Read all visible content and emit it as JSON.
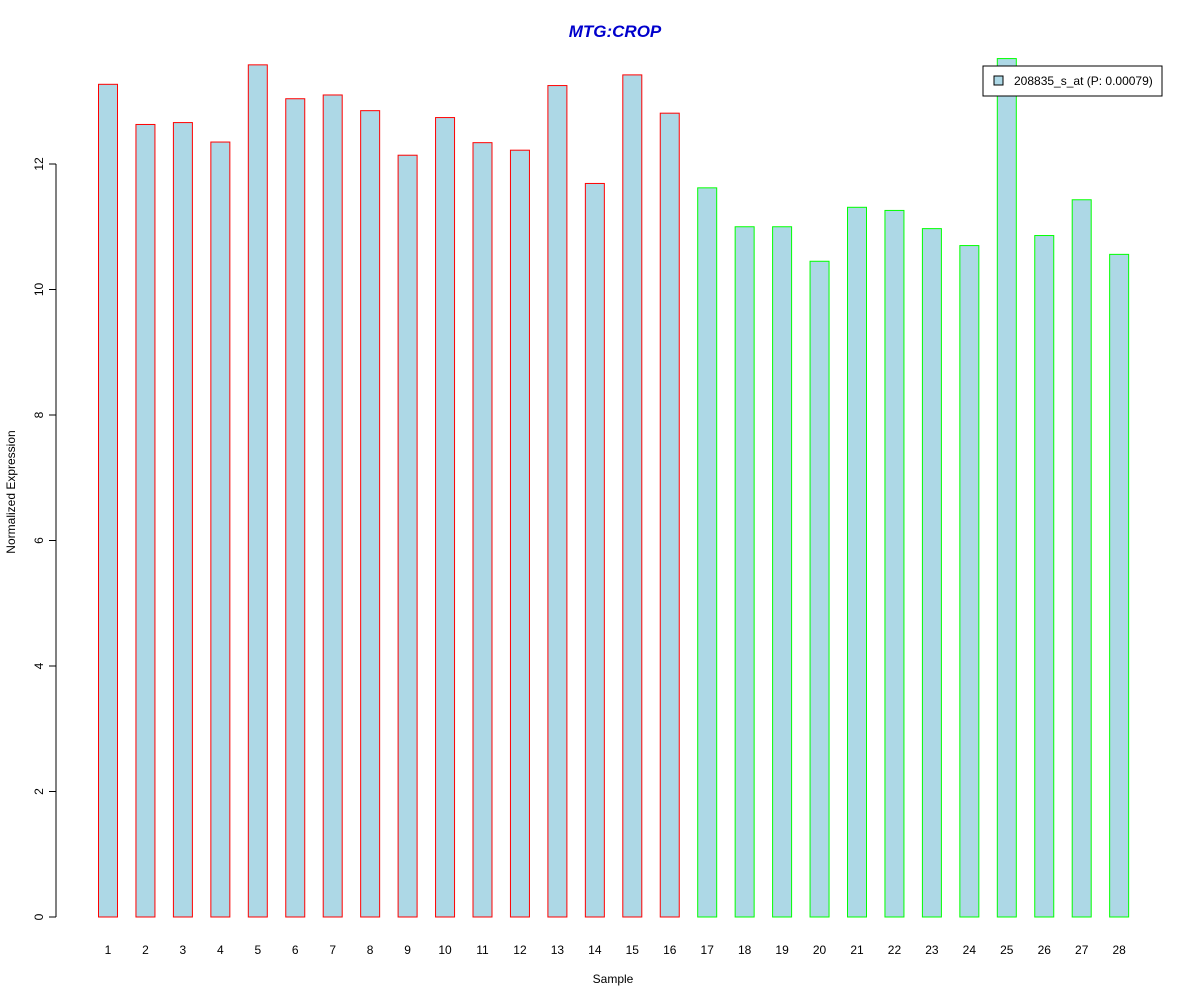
{
  "chart_data": {
    "type": "bar",
    "title": "MTG:CROP",
    "xlabel": "Sample",
    "ylabel": "Normalized Expression",
    "ylim": [
      0,
      13.6
    ],
    "y_ticks": [
      0,
      2,
      4,
      6,
      8,
      10,
      12
    ],
    "categories": [
      "1",
      "2",
      "3",
      "4",
      "5",
      "6",
      "7",
      "8",
      "9",
      "10",
      "11",
      "12",
      "13",
      "14",
      "15",
      "16",
      "17",
      "18",
      "19",
      "20",
      "21",
      "22",
      "23",
      "24",
      "25",
      "26",
      "27",
      "28"
    ],
    "series": [
      {
        "name": "208835_s_at (P: 0.00079)",
        "values": [
          13.27,
          12.63,
          12.66,
          12.35,
          13.58,
          13.04,
          13.1,
          12.85,
          12.14,
          12.74,
          12.34,
          12.22,
          13.25,
          11.69,
          13.42,
          12.81,
          11.62,
          11.0,
          11.0,
          10.45,
          11.31,
          11.26,
          10.97,
          10.7,
          13.68,
          10.86,
          11.43,
          10.56
        ]
      }
    ],
    "groups": [
      {
        "samples": [
          1,
          16
        ],
        "border_color": "#ff0000"
      },
      {
        "samples": [
          17,
          28
        ],
        "border_color": "#00ff00"
      }
    ],
    "bar_fill": "#add8e6",
    "title_color": "#0000cc",
    "grid": false,
    "legend_position": "top-right"
  }
}
